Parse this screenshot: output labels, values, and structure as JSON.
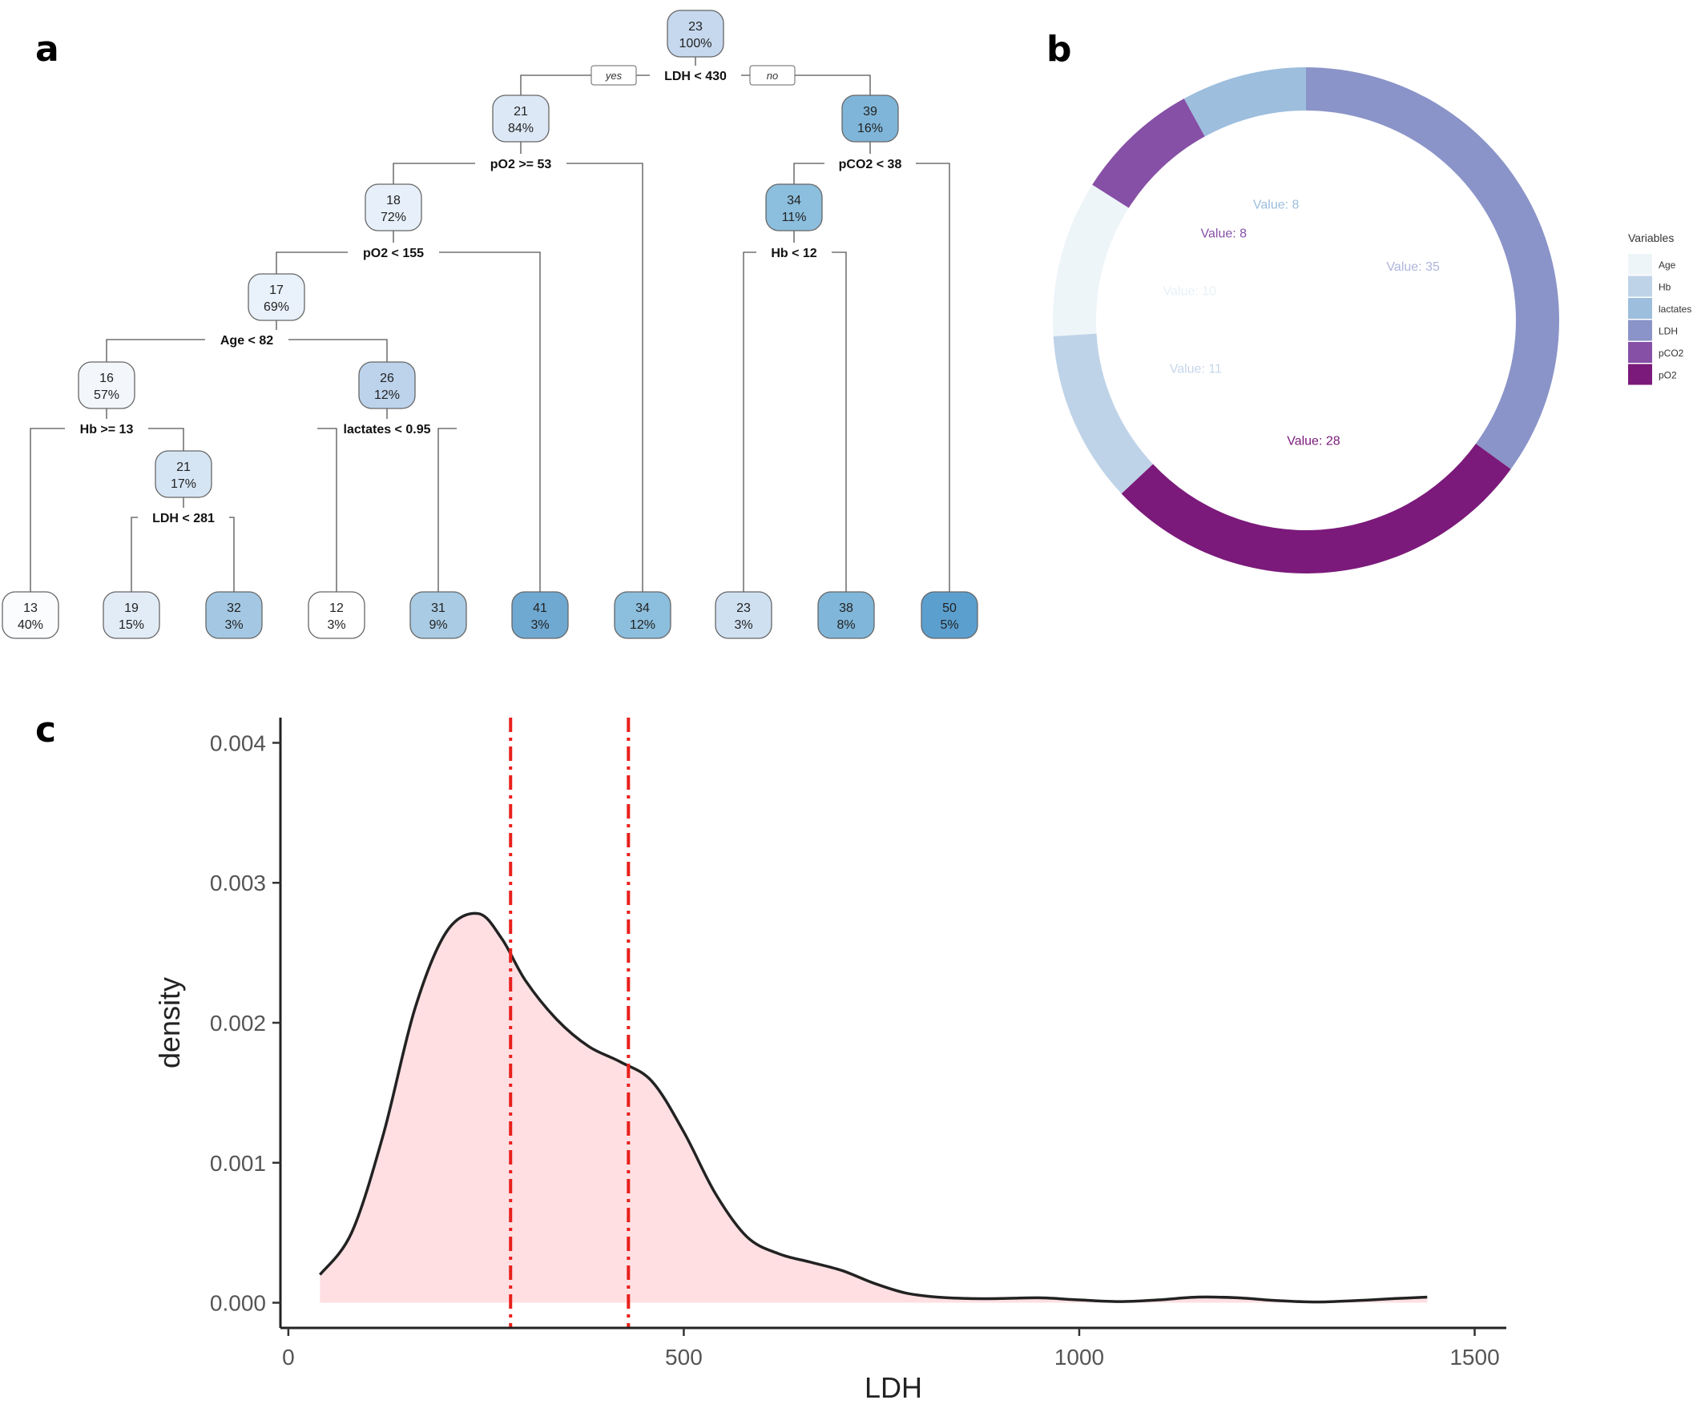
{
  "panels": {
    "a": "a",
    "b": "b",
    "c": "c"
  },
  "chart_data": [
    {
      "panel": "a",
      "type": "decision-tree",
      "branch_labels": {
        "yes": "yes",
        "no": "no"
      },
      "nodes": [
        {
          "id": "n0",
          "value": "23",
          "pct": "100%",
          "color": "#c6d8ee"
        },
        {
          "id": "n1",
          "value": "21",
          "pct": "84%",
          "color": "#dce8f6"
        },
        {
          "id": "n2",
          "value": "39",
          "pct": "16%",
          "color": "#7fb5d8"
        },
        {
          "id": "n3",
          "value": "18",
          "pct": "72%",
          "color": "#e7f0fa"
        },
        {
          "id": "n4",
          "value": "34",
          "pct": "11%",
          "color": "#8cbedd"
        },
        {
          "id": "n5",
          "value": "17",
          "pct": "69%",
          "color": "#e9f1fa"
        },
        {
          "id": "n6",
          "value": "16",
          "pct": "57%",
          "color": "#f3f7fc"
        },
        {
          "id": "n7",
          "value": "26",
          "pct": "12%",
          "color": "#bcd3eb"
        },
        {
          "id": "n8",
          "value": "21",
          "pct": "17%",
          "color": "#d6e5f4"
        },
        {
          "id": "l1",
          "value": "13",
          "pct": "40%",
          "color": "#fbfcfe"
        },
        {
          "id": "l2",
          "value": "19",
          "pct": "15%",
          "color": "#e2ecf7"
        },
        {
          "id": "l3",
          "value": "32",
          "pct": "3%",
          "color": "#a4c8e3"
        },
        {
          "id": "l4",
          "value": "12",
          "pct": "3%",
          "color": "#ffffff"
        },
        {
          "id": "l5",
          "value": "31",
          "pct": "9%",
          "color": "#a9cbe4"
        },
        {
          "id": "l6",
          "value": "41",
          "pct": "3%",
          "color": "#6fa9d2"
        },
        {
          "id": "l7",
          "value": "34",
          "pct": "12%",
          "color": "#8cbedd"
        },
        {
          "id": "l8",
          "value": "23",
          "pct": "3%",
          "color": "#cfe0f1"
        },
        {
          "id": "l9",
          "value": "38",
          "pct": "8%",
          "color": "#80b6d9"
        },
        {
          "id": "l10",
          "value": "50",
          "pct": "5%",
          "color": "#5b9fcf"
        }
      ],
      "splits": [
        {
          "id": "s0",
          "label": "LDH < 430"
        },
        {
          "id": "s1",
          "label": "pO2 >= 53"
        },
        {
          "id": "s2",
          "label": "pCO2 < 38"
        },
        {
          "id": "s3",
          "label": "pO2 < 155"
        },
        {
          "id": "s4",
          "label": "Hb < 12"
        },
        {
          "id": "s5",
          "label": "Age < 82"
        },
        {
          "id": "s6",
          "label": "Hb >= 13"
        },
        {
          "id": "s7",
          "label": "lactates < 0.95"
        },
        {
          "id": "s8",
          "label": "LDH < 281"
        }
      ]
    },
    {
      "panel": "b",
      "type": "pie",
      "style": "donut",
      "legend_title": "Variables",
      "legend_position": "right",
      "segments": [
        {
          "name": "LDH",
          "value": 35,
          "label": "Value: 35",
          "color": "#8a94c8",
          "label_color": "#aeb4dc"
        },
        {
          "name": "pO2",
          "value": 28,
          "label": "Value: 28",
          "color": "#7b1a7a",
          "label_color": "#7b1a7a"
        },
        {
          "name": "Hb",
          "value": 11,
          "label": "Value: 11",
          "color": "#bfd3e8",
          "label_color": "#c6d6ea"
        },
        {
          "name": "Age",
          "value": 10,
          "label": "Value: 10",
          "color": "#eef5f9",
          "label_color": "#e8f0f6"
        },
        {
          "name": "pCO2",
          "value": 8,
          "label": "Value: 8",
          "color": "#8650a6",
          "label_color": "#8650a6"
        },
        {
          "name": "lactates",
          "value": 8,
          "label": "Value: 8",
          "color": "#9dbedd",
          "label_color": "#9dbedd"
        }
      ],
      "legend_order": [
        "Age",
        "Hb",
        "lactates",
        "LDH",
        "pCO2",
        "pO2"
      ]
    },
    {
      "panel": "c",
      "type": "area",
      "xlabel": "LDH",
      "ylabel": "density",
      "xlim": [
        -10,
        1540
      ],
      "ylim": [
        -0.00018,
        0.00418
      ],
      "xticks": [
        {
          "v": 0,
          "label": "0"
        },
        {
          "v": 500,
          "label": "500"
        },
        {
          "v": 1000,
          "label": "1000"
        },
        {
          "v": 1500,
          "label": "1500"
        }
      ],
      "yticks": [
        {
          "v": 0.0,
          "label": "0.000"
        },
        {
          "v": 0.001,
          "label": "0.001"
        },
        {
          "v": 0.002,
          "label": "0.002"
        },
        {
          "v": 0.003,
          "label": "0.003"
        },
        {
          "v": 0.004,
          "label": "0.004"
        }
      ],
      "fill_color": "#ffdfe2",
      "line_color": "#222222",
      "vlines": [
        {
          "x": 281,
          "color": "#e8201c"
        },
        {
          "x": 430,
          "color": "#e8201c"
        }
      ],
      "x": [
        40,
        80,
        120,
        160,
        200,
        240,
        270,
        300,
        340,
        380,
        420,
        460,
        500,
        540,
        580,
        620,
        660,
        700,
        740,
        780,
        820,
        860,
        900,
        950,
        1000,
        1050,
        1100,
        1150,
        1200,
        1250,
        1300,
        1350,
        1400,
        1440
      ],
      "y": [
        0.0002,
        0.0005,
        0.0012,
        0.0021,
        0.00265,
        0.00278,
        0.0026,
        0.0023,
        0.00202,
        0.00183,
        0.00172,
        0.00158,
        0.00122,
        0.00078,
        0.00047,
        0.00035,
        0.00029,
        0.00023,
        0.00014,
        7e-05,
        4e-05,
        3e-05,
        3e-05,
        3.5e-05,
        2e-05,
        8e-06,
        2e-05,
        4e-05,
        3.5e-05,
        1.5e-05,
        5e-06,
        1.5e-05,
        3e-05,
        4e-05
      ]
    }
  ]
}
